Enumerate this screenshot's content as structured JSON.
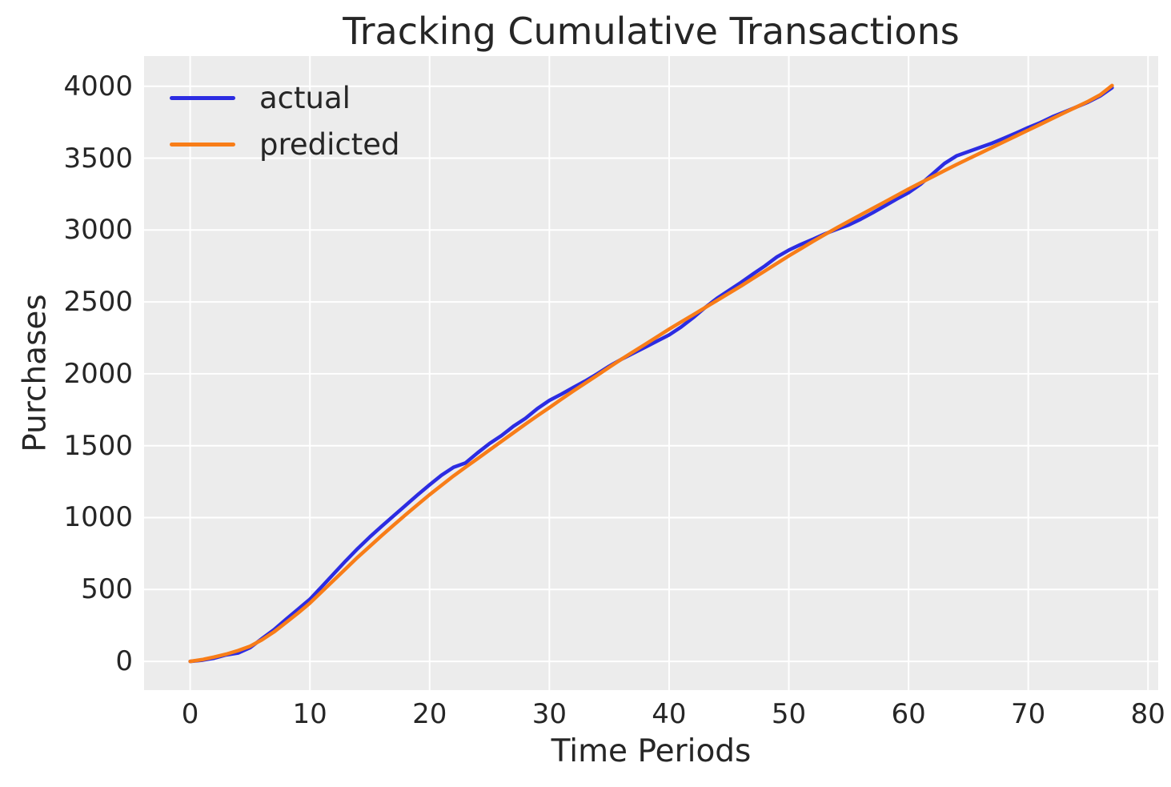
{
  "figure": {
    "background": "#ffffff",
    "plot_background": "#ececec",
    "grid_color": "#ffffff",
    "text_color": "#262626"
  },
  "chart_data": {
    "type": "line",
    "title": "Tracking Cumulative Transactions",
    "xlabel": "Time Periods",
    "ylabel": "Purchases",
    "grid": true,
    "legend_position": "upper left",
    "xlim": [
      -3.85,
      80.85
    ],
    "ylim": [
      -200,
      4210
    ],
    "xticks": [
      0,
      10,
      20,
      30,
      40,
      50,
      60,
      70,
      80
    ],
    "yticks": [
      0,
      500,
      1000,
      1500,
      2000,
      2500,
      3000,
      3500,
      4000
    ],
    "x": [
      0,
      1,
      2,
      3,
      4,
      5,
      6,
      7,
      8,
      9,
      10,
      11,
      12,
      13,
      14,
      15,
      16,
      17,
      18,
      19,
      20,
      21,
      22,
      23,
      24,
      25,
      26,
      27,
      28,
      29,
      30,
      31,
      32,
      33,
      34,
      35,
      36,
      37,
      38,
      39,
      40,
      41,
      42,
      43,
      44,
      45,
      46,
      47,
      48,
      49,
      50,
      51,
      52,
      53,
      54,
      55,
      56,
      57,
      58,
      59,
      60,
      61,
      62,
      63,
      64,
      65,
      66,
      67,
      68,
      69,
      70,
      71,
      72,
      73,
      74,
      75,
      76,
      77
    ],
    "series": [
      {
        "name": "actual",
        "color": "#2c2ce2",
        "values": [
          0,
          8,
          22,
          45,
          58,
          95,
          158,
          220,
          292,
          362,
          432,
          520,
          610,
          700,
          785,
          865,
          940,
          1013,
          1085,
          1158,
          1228,
          1295,
          1350,
          1380,
          1450,
          1515,
          1570,
          1635,
          1690,
          1758,
          1815,
          1858,
          1905,
          1950,
          2000,
          2053,
          2100,
          2143,
          2185,
          2228,
          2270,
          2325,
          2390,
          2460,
          2525,
          2580,
          2635,
          2693,
          2750,
          2813,
          2860,
          2900,
          2935,
          2973,
          3005,
          3035,
          3075,
          3120,
          3167,
          3215,
          3260,
          3318,
          3390,
          3463,
          3515,
          3545,
          3575,
          3605,
          3640,
          3675,
          3713,
          3747,
          3787,
          3820,
          3855,
          3890,
          3932,
          3990
        ]
      },
      {
        "name": "predicted",
        "color": "#f87d18",
        "values": [
          0,
          12,
          30,
          50,
          75,
          105,
          150,
          205,
          270,
          335,
          405,
          485,
          565,
          645,
          725,
          800,
          875,
          948,
          1020,
          1090,
          1160,
          1225,
          1290,
          1350,
          1410,
          1470,
          1530,
          1590,
          1650,
          1708,
          1765,
          1823,
          1880,
          1935,
          1990,
          2045,
          2100,
          2153,
          2205,
          2258,
          2310,
          2360,
          2410,
          2460,
          2510,
          2560,
          2610,
          2663,
          2715,
          2768,
          2820,
          2870,
          2920,
          2968,
          3015,
          3060,
          3105,
          3150,
          3195,
          3240,
          3285,
          3328,
          3370,
          3413,
          3455,
          3495,
          3535,
          3575,
          3615,
          3655,
          3695,
          3735,
          3775,
          3815,
          3855,
          3895,
          3940,
          4005
        ]
      }
    ]
  }
}
